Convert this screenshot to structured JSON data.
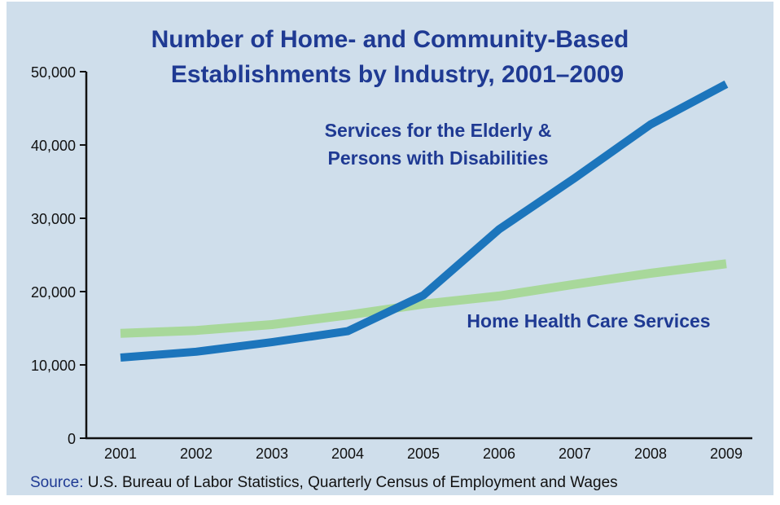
{
  "chart_data": {
    "type": "line",
    "title_lines": [
      "Number of Home- and Community-Based",
      "Establishments by Industry, 2001–2009"
    ],
    "x": [
      "2001",
      "2002",
      "2003",
      "2004",
      "2005",
      "2006",
      "2007",
      "2008",
      "2009"
    ],
    "ylim": [
      0,
      50000
    ],
    "yticks": [
      {
        "value": 0,
        "label": "0"
      },
      {
        "value": 10000,
        "label": "10,000"
      },
      {
        "value": 20000,
        "label": "20,000"
      },
      {
        "value": 30000,
        "label": "30,000"
      },
      {
        "value": 40000,
        "label": "40,000"
      },
      {
        "value": 50000,
        "label": "50,000"
      }
    ],
    "grid": false,
    "series": [
      {
        "name": "Home Health Care Services",
        "label_lines": [
          "Home Health Care Services"
        ],
        "color": "#a8d89a",
        "values": [
          14300,
          14700,
          15500,
          16800,
          18300,
          19400,
          21000,
          22500,
          23800
        ]
      },
      {
        "name": "Services for the Elderly & Persons with Disabilities",
        "label_lines": [
          "Services for the Elderly &",
          "Persons with Disabilities"
        ],
        "color": "#1c75bc",
        "values": [
          11000,
          11800,
          13100,
          14600,
          19500,
          28500,
          35500,
          42800,
          48300
        ]
      }
    ],
    "source": {
      "prefix": "Source:",
      "text": " U.S. Bureau of Labor Statistics, Quarterly Census of Employment and Wages"
    }
  },
  "colors": {
    "panel": "#cfdeeb",
    "axis": "#111111",
    "title": "#1f3a93"
  }
}
